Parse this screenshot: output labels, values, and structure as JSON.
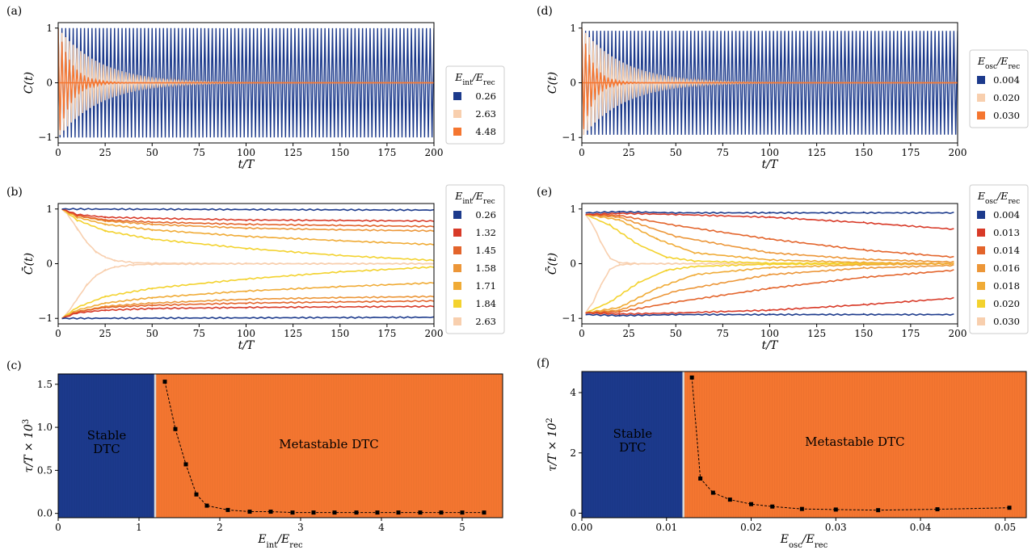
{
  "chart_data": [
    {
      "id": "a",
      "panel_label": "(a)",
      "type": "line",
      "title": "",
      "xlabel": "t/T",
      "ylabel": "C(t)",
      "xlim": [
        0,
        200
      ],
      "ylim": [
        -1.1,
        1.1
      ],
      "xticks": [
        0,
        25,
        50,
        75,
        100,
        125,
        150,
        175,
        200
      ],
      "yticks": [
        -1,
        0,
        1
      ],
      "legend_title": "E_int/E_rec",
      "legend_position": "right",
      "series": [
        {
          "name": "0.26",
          "color": "#1c3a8c",
          "amplitude": 1.0,
          "decay_time": 100000,
          "period": 2
        },
        {
          "name": "2.63",
          "color": "#f8cfae",
          "amplitude": 1.0,
          "decay_time": 22,
          "period": 2
        },
        {
          "name": "4.48",
          "color": "#f57630",
          "amplitude": 1.0,
          "decay_time": 7,
          "period": 2
        }
      ]
    },
    {
      "id": "b",
      "panel_label": "(b)",
      "type": "line",
      "title": "",
      "xlabel": "t/T",
      "ylabel": "C̄(t)",
      "xlim": [
        0,
        200
      ],
      "ylim": [
        -1.1,
        1.1
      ],
      "xticks": [
        0,
        25,
        50,
        75,
        100,
        125,
        150,
        175,
        200
      ],
      "yticks": [
        -1,
        0,
        1
      ],
      "legend_title": "E_int/E_rec",
      "legend_position": "right",
      "series": [
        {
          "name": "0.26",
          "color": "#1c3a8c",
          "x": [
            2,
            200
          ],
          "upper": [
            1.0,
            0.98
          ],
          "lower": [
            -1.0,
            -0.98
          ]
        },
        {
          "name": "1.32",
          "color": "#d83a28",
          "x": [
            2,
            10,
            25,
            50,
            100,
            150,
            200
          ],
          "upper": [
            1.0,
            0.9,
            0.85,
            0.83,
            0.8,
            0.79,
            0.78
          ],
          "lower": [
            -1.0,
            -0.9,
            -0.85,
            -0.82,
            -0.8,
            -0.79,
            -0.78
          ]
        },
        {
          "name": "1.45",
          "color": "#e3642b",
          "x": [
            2,
            10,
            25,
            50,
            100,
            150,
            200
          ],
          "upper": [
            1.0,
            0.88,
            0.8,
            0.76,
            0.72,
            0.7,
            0.68
          ],
          "lower": [
            -1.0,
            -0.88,
            -0.8,
            -0.76,
            -0.72,
            -0.7,
            -0.68
          ]
        },
        {
          "name": "1.58",
          "color": "#ec9638",
          "x": [
            2,
            10,
            25,
            50,
            100,
            150,
            200
          ],
          "upper": [
            1.0,
            0.88,
            0.78,
            0.72,
            0.65,
            0.62,
            0.6
          ],
          "lower": [
            -1.0,
            -0.88,
            -0.78,
            -0.72,
            -0.65,
            -0.62,
            -0.6
          ]
        },
        {
          "name": "1.71",
          "color": "#f0ab36",
          "x": [
            2,
            10,
            25,
            50,
            100,
            150,
            200
          ],
          "upper": [
            1.0,
            0.85,
            0.72,
            0.62,
            0.5,
            0.42,
            0.35
          ],
          "lower": [
            -1.0,
            -0.85,
            -0.72,
            -0.62,
            -0.5,
            -0.42,
            -0.35
          ]
        },
        {
          "name": "1.84",
          "color": "#f3d22e",
          "x": [
            2,
            10,
            25,
            50,
            100,
            150,
            200
          ],
          "upper": [
            1.0,
            0.8,
            0.6,
            0.45,
            0.28,
            0.15,
            0.06
          ],
          "lower": [
            -1.0,
            -0.8,
            -0.6,
            -0.45,
            -0.28,
            -0.15,
            -0.06
          ]
        },
        {
          "name": "2.63",
          "color": "#f8cfae",
          "x": [
            2,
            5,
            10,
            15,
            20,
            25,
            30,
            40,
            50,
            100,
            200
          ],
          "upper": [
            1.0,
            0.9,
            0.65,
            0.4,
            0.22,
            0.12,
            0.06,
            0.02,
            0.01,
            0.0,
            0.0
          ],
          "lower": [
            -1.0,
            -0.9,
            -0.65,
            -0.4,
            -0.22,
            -0.12,
            -0.06,
            -0.02,
            -0.01,
            0.0,
            0.0
          ]
        }
      ]
    },
    {
      "id": "c",
      "panel_label": "(c)",
      "type": "line",
      "title": "",
      "xlabel": "E_int/E_rec",
      "ylabel": "τ/T × 10^3",
      "xlim": [
        0,
        5.5
      ],
      "ylim": [
        -0.05,
        1.62
      ],
      "xticks": [
        0,
        1,
        2,
        3,
        4,
        5
      ],
      "yticks": [
        0.0,
        0.5,
        1.0,
        1.5
      ],
      "regions": [
        {
          "label_line1": "Stable",
          "label_line2": "DTC",
          "from": 0,
          "to": 1.2,
          "color": "#1c3a8c"
        },
        {
          "label_line1": "Metastable DTC",
          "label_line2": "",
          "from": 1.2,
          "to": 5.5,
          "color": "#f57630"
        }
      ],
      "boundary": 1.2,
      "x": [
        1.32,
        1.45,
        1.58,
        1.71,
        1.84,
        2.1,
        2.37,
        2.63,
        2.9,
        3.16,
        3.42,
        3.69,
        3.95,
        4.21,
        4.48,
        4.74,
        5.0,
        5.27
      ],
      "values": [
        1.53,
        0.98,
        0.57,
        0.22,
        0.09,
        0.04,
        0.02,
        0.02,
        0.01,
        0.01,
        0.01,
        0.01,
        0.01,
        0.01,
        0.01,
        0.01,
        0.01,
        0.01
      ]
    },
    {
      "id": "d",
      "panel_label": "(d)",
      "type": "line",
      "title": "",
      "xlabel": "t/T",
      "ylabel": "C(t)",
      "xlim": [
        0,
        200
      ],
      "ylim": [
        -1.1,
        1.1
      ],
      "xticks": [
        0,
        25,
        50,
        75,
        100,
        125,
        150,
        175,
        200
      ],
      "yticks": [
        -1,
        0,
        1
      ],
      "legend_title": "E_osc/E_rec",
      "legend_position": "right",
      "series": [
        {
          "name": "0.004",
          "color": "#1c3a8c",
          "amplitude": 0.95,
          "decay_time": 100000,
          "period": 2
        },
        {
          "name": "0.020",
          "color": "#f8cfae",
          "amplitude": 1.0,
          "decay_time": 22,
          "period": 2
        },
        {
          "name": "0.030",
          "color": "#f57630",
          "amplitude": 1.0,
          "decay_time": 6,
          "period": 2
        }
      ]
    },
    {
      "id": "e",
      "panel_label": "(e)",
      "type": "line",
      "title": "",
      "xlabel": "t/T",
      "ylabel": "C̄(t)",
      "xlim": [
        0,
        200
      ],
      "ylim": [
        -1.1,
        1.1
      ],
      "xticks": [
        0,
        25,
        50,
        75,
        100,
        125,
        150,
        175,
        200
      ],
      "yticks": [
        -1,
        0,
        1
      ],
      "legend_title": "E_osc/E_rec",
      "legend_position": "right",
      "series": [
        {
          "name": "0.004",
          "color": "#1c3a8c",
          "x": [
            2,
            20,
            50,
            100,
            150,
            198
          ],
          "upper": [
            0.93,
            0.95,
            0.93,
            0.93,
            0.93,
            0.93
          ],
          "lower": [
            -0.93,
            -0.95,
            -0.93,
            -0.93,
            -0.93,
            -0.93
          ]
        },
        {
          "name": "0.013",
          "color": "#d83a28",
          "x": [
            2,
            20,
            50,
            100,
            150,
            198
          ],
          "upper": [
            0.9,
            0.92,
            0.9,
            0.85,
            0.75,
            0.63
          ],
          "lower": [
            -0.9,
            -0.92,
            -0.9,
            -0.85,
            -0.75,
            -0.63
          ]
        },
        {
          "name": "0.014",
          "color": "#e3642b",
          "x": [
            2,
            20,
            50,
            100,
            150,
            198
          ],
          "upper": [
            0.9,
            0.88,
            0.7,
            0.45,
            0.25,
            0.12
          ],
          "lower": [
            -0.9,
            -0.88,
            -0.7,
            -0.45,
            -0.25,
            -0.12
          ]
        },
        {
          "name": "0.016",
          "color": "#ec9638",
          "x": [
            2,
            20,
            50,
            100,
            150,
            198
          ],
          "upper": [
            0.9,
            0.85,
            0.5,
            0.2,
            0.08,
            0.03
          ],
          "lower": [
            -0.9,
            -0.85,
            -0.5,
            -0.2,
            -0.08,
            -0.03
          ]
        },
        {
          "name": "0.018",
          "color": "#f0ab36",
          "x": [
            2,
            20,
            40,
            60,
            100,
            150,
            198
          ],
          "upper": [
            0.9,
            0.8,
            0.45,
            0.2,
            0.07,
            0.02,
            0.0
          ],
          "lower": [
            -0.9,
            -0.8,
            -0.45,
            -0.2,
            -0.07,
            -0.02,
            0.0
          ]
        },
        {
          "name": "0.020",
          "color": "#f3d22e",
          "x": [
            2,
            15,
            30,
            45,
            60,
            100,
            198
          ],
          "upper": [
            0.9,
            0.7,
            0.35,
            0.12,
            0.05,
            0.01,
            0.0
          ],
          "lower": [
            -0.9,
            -0.7,
            -0.35,
            -0.12,
            -0.05,
            -0.01,
            0.0
          ]
        },
        {
          "name": "0.030",
          "color": "#f8cfae",
          "x": [
            2,
            6,
            10,
            15,
            20,
            30,
            100,
            198
          ],
          "upper": [
            0.9,
            0.7,
            0.4,
            0.1,
            0.02,
            0.0,
            0.0,
            0.0
          ],
          "lower": [
            -0.9,
            -0.7,
            -0.4,
            -0.1,
            -0.02,
            0.0,
            0.0,
            0.0
          ]
        }
      ]
    },
    {
      "id": "f",
      "panel_label": "(f)",
      "type": "line",
      "title": "",
      "xlabel": "E_osc/E_rec",
      "ylabel": "τ/T × 10^2",
      "xlim": [
        0,
        0.0525
      ],
      "ylim": [
        -0.15,
        4.7
      ],
      "xticks": [
        0.0,
        0.01,
        0.02,
        0.03,
        0.04,
        0.05
      ],
      "xtick_labels": [
        "0.00",
        "0.01",
        "0.02",
        "0.03",
        "0.04",
        "0.05"
      ],
      "yticks": [
        0,
        2,
        4
      ],
      "regions": [
        {
          "label_line1": "Stable",
          "label_line2": "DTC",
          "from": 0,
          "to": 0.012,
          "color": "#1c3a8c"
        },
        {
          "label_line1": "Metastable DTC",
          "label_line2": "",
          "from": 0.012,
          "to": 0.0525,
          "color": "#f57630"
        }
      ],
      "boundary": 0.012,
      "x": [
        0.013,
        0.014,
        0.0155,
        0.0175,
        0.02,
        0.0225,
        0.026,
        0.03,
        0.035,
        0.042,
        0.0505
      ],
      "values": [
        4.5,
        1.15,
        0.68,
        0.45,
        0.3,
        0.22,
        0.14,
        0.12,
        0.1,
        0.13,
        0.18
      ]
    }
  ]
}
